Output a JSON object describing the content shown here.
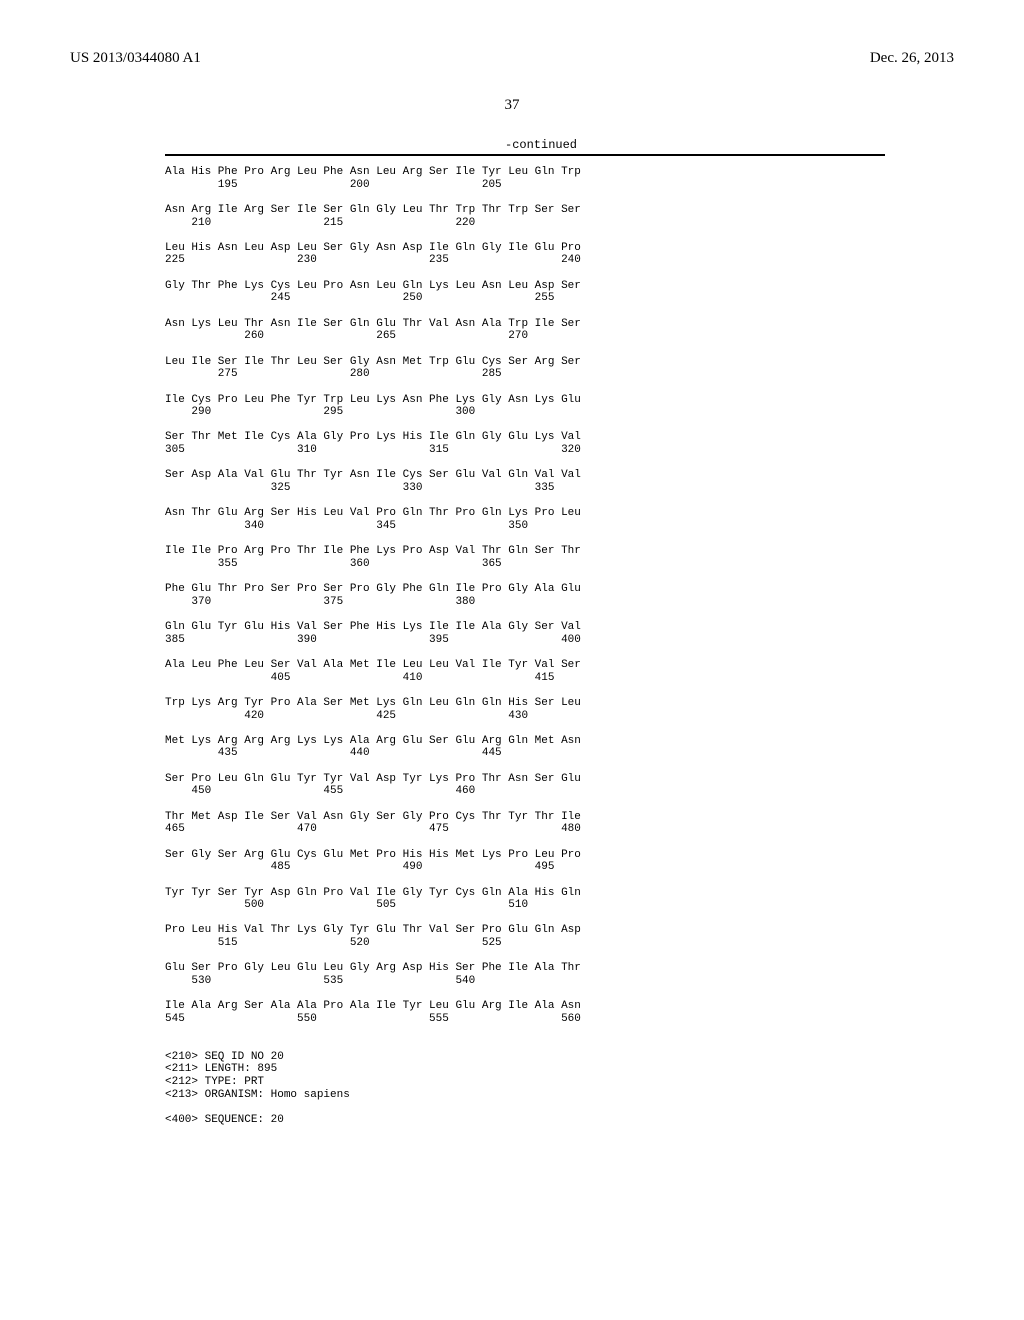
{
  "header": {
    "left": "US 2013/0344080 A1",
    "right": "Dec. 26, 2013"
  },
  "page_number": "37",
  "continued_label": "-continued",
  "sequence_lines": [
    "Ala His Phe Pro Arg Leu Phe Asn Leu Arg Ser Ile Tyr Leu Gln Trp",
    "        195                 200                 205",
    "",
    "Asn Arg Ile Arg Ser Ile Ser Gln Gly Leu Thr Trp Thr Trp Ser Ser",
    "    210                 215                 220",
    "",
    "Leu His Asn Leu Asp Leu Ser Gly Asn Asp Ile Gln Gly Ile Glu Pro",
    "225                 230                 235                 240",
    "",
    "Gly Thr Phe Lys Cys Leu Pro Asn Leu Gln Lys Leu Asn Leu Asp Ser",
    "                245                 250                 255",
    "",
    "Asn Lys Leu Thr Asn Ile Ser Gln Glu Thr Val Asn Ala Trp Ile Ser",
    "            260                 265                 270",
    "",
    "Leu Ile Ser Ile Thr Leu Ser Gly Asn Met Trp Glu Cys Ser Arg Ser",
    "        275                 280                 285",
    "",
    "Ile Cys Pro Leu Phe Tyr Trp Leu Lys Asn Phe Lys Gly Asn Lys Glu",
    "    290                 295                 300",
    "",
    "Ser Thr Met Ile Cys Ala Gly Pro Lys His Ile Gln Gly Glu Lys Val",
    "305                 310                 315                 320",
    "",
    "Ser Asp Ala Val Glu Thr Tyr Asn Ile Cys Ser Glu Val Gln Val Val",
    "                325                 330                 335",
    "",
    "Asn Thr Glu Arg Ser His Leu Val Pro Gln Thr Pro Gln Lys Pro Leu",
    "            340                 345                 350",
    "",
    "Ile Ile Pro Arg Pro Thr Ile Phe Lys Pro Asp Val Thr Gln Ser Thr",
    "        355                 360                 365",
    "",
    "Phe Glu Thr Pro Ser Pro Ser Pro Gly Phe Gln Ile Pro Gly Ala Glu",
    "    370                 375                 380",
    "",
    "Gln Glu Tyr Glu His Val Ser Phe His Lys Ile Ile Ala Gly Ser Val",
    "385                 390                 395                 400",
    "",
    "Ala Leu Phe Leu Ser Val Ala Met Ile Leu Leu Val Ile Tyr Val Ser",
    "                405                 410                 415",
    "",
    "Trp Lys Arg Tyr Pro Ala Ser Met Lys Gln Leu Gln Gln His Ser Leu",
    "            420                 425                 430",
    "",
    "Met Lys Arg Arg Arg Lys Lys Ala Arg Glu Ser Glu Arg Gln Met Asn",
    "        435                 440                 445",
    "",
    "Ser Pro Leu Gln Glu Tyr Tyr Val Asp Tyr Lys Pro Thr Asn Ser Glu",
    "    450                 455                 460",
    "",
    "Thr Met Asp Ile Ser Val Asn Gly Ser Gly Pro Cys Thr Tyr Thr Ile",
    "465                 470                 475                 480",
    "",
    "Ser Gly Ser Arg Glu Cys Glu Met Pro His His Met Lys Pro Leu Pro",
    "                485                 490                 495",
    "",
    "Tyr Tyr Ser Tyr Asp Gln Pro Val Ile Gly Tyr Cys Gln Ala His Gln",
    "            500                 505                 510",
    "",
    "Pro Leu His Val Thr Lys Gly Tyr Glu Thr Val Ser Pro Glu Gln Asp",
    "        515                 520                 525",
    "",
    "Glu Ser Pro Gly Leu Glu Leu Gly Arg Asp His Ser Phe Ile Ala Thr",
    "    530                 535                 540",
    "",
    "Ile Ala Arg Ser Ala Ala Pro Ala Ile Tyr Leu Glu Arg Ile Ala Asn",
    "545                 550                 555                 560",
    "",
    "",
    "<210> SEQ ID NO 20",
    "<211> LENGTH: 895",
    "<212> TYPE: PRT",
    "<213> ORGANISM: Homo sapiens",
    "",
    "<400> SEQUENCE: 20"
  ]
}
